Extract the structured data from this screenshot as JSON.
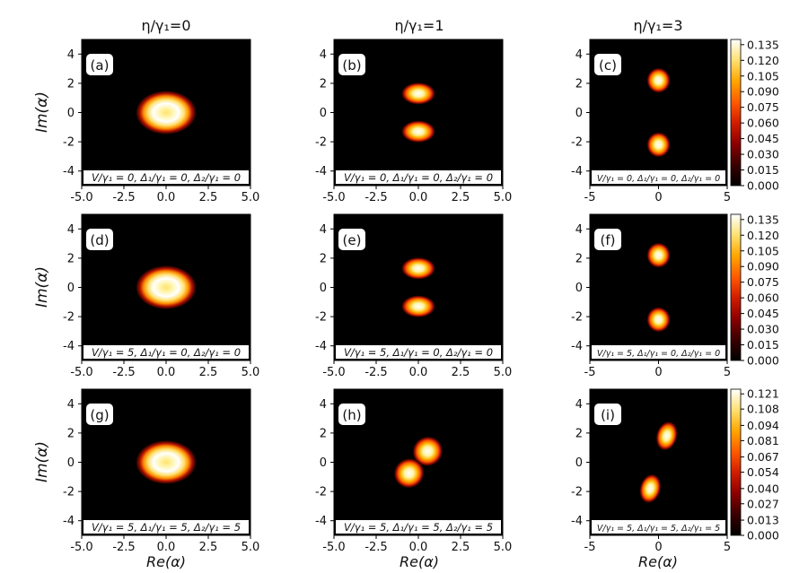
{
  "figure": {
    "column_titles": [
      "η/γ₁=0",
      "η/γ₁=1",
      "η/γ₁=3"
    ],
    "row_ylabels": [
      "Im(α)",
      "Im(α)",
      "Im(α)"
    ],
    "bottom_xlabels": [
      "Re(α)",
      "Re(α)",
      "Re(α)"
    ],
    "colormap": [
      "#000000",
      "#3a0000",
      "#8b0000",
      "#d01c00",
      "#ff5a00",
      "#ffa500",
      "#ffe070",
      "#ffffff"
    ]
  },
  "chart_data": [
    {
      "type": "heatmap",
      "panel_label": "(a)",
      "annotation": "V/γ₁ = 0, Δ₁/γ₁ = 0, Δ₂/γ₁ = 0",
      "xlim": [
        -5,
        5
      ],
      "ylim": [
        -5,
        5
      ],
      "xticks": [
        "-5.0",
        "-2.5",
        "0.0",
        "2.5",
        "5.0"
      ],
      "yticks": [
        "4",
        "2",
        "0",
        "-2",
        "-4"
      ],
      "vmax": 0.14,
      "blobs": [
        {
          "x": 0,
          "y": 0,
          "rx": 1.8,
          "ry": 1.5,
          "ring": true
        }
      ]
    },
    {
      "type": "heatmap",
      "panel_label": "(b)",
      "annotation": "V/γ₁ = 0, Δ₁/γ₁ = 0, Δ₂/γ₁ = 0",
      "xlim": [
        -5,
        5
      ],
      "ylim": [
        -5,
        5
      ],
      "xticks": [
        "-5.0",
        "-2.5",
        "0.0",
        "2.5",
        "5.0"
      ],
      "yticks": [
        "4",
        "2",
        "0",
        "-2",
        "-4"
      ],
      "vmax": 0.14,
      "blobs": [
        {
          "x": 0,
          "y": 1.3,
          "rx": 1.0,
          "ry": 0.75
        },
        {
          "x": 0,
          "y": -1.3,
          "rx": 1.0,
          "ry": 0.75
        }
      ]
    },
    {
      "type": "heatmap",
      "panel_label": "(c)",
      "annotation": "V/γ₁ = 0, Δ₁/γ₁ = 0, Δ₂/γ₁ = 0",
      "xlim": [
        -5,
        5
      ],
      "ylim": [
        -5,
        5
      ],
      "xticks": [
        "-5",
        "0",
        "5"
      ],
      "yticks": [
        "4",
        "2",
        "0",
        "-2",
        "-4"
      ],
      "vmax": 0.14,
      "blobs": [
        {
          "x": 0,
          "y": 2.2,
          "rx": 0.85,
          "ry": 0.85
        },
        {
          "x": 0,
          "y": -2.2,
          "rx": 0.85,
          "ry": 0.85
        }
      ],
      "colorbar": {
        "ticks": [
          "0.135",
          "0.120",
          "0.105",
          "0.090",
          "0.075",
          "0.060",
          "0.045",
          "0.030",
          "0.015",
          "0.000"
        ],
        "max": 0.14
      }
    },
    {
      "type": "heatmap",
      "panel_label": "(d)",
      "annotation": "V/γ₁ = 5, Δ₁/γ₁ = 0, Δ₂/γ₁ = 0",
      "xlim": [
        -5,
        5
      ],
      "ylim": [
        -5,
        5
      ],
      "xticks": [
        "-5.0",
        "-2.5",
        "0.0",
        "2.5",
        "5.0"
      ],
      "yticks": [
        "4",
        "2",
        "0",
        "-2",
        "-4"
      ],
      "vmax": 0.14,
      "blobs": [
        {
          "x": 0,
          "y": 0,
          "rx": 1.8,
          "ry": 1.5,
          "ring": true
        }
      ]
    },
    {
      "type": "heatmap",
      "panel_label": "(e)",
      "annotation": "V/γ₁ = 5, Δ₁/γ₁ = 0, Δ₂/γ₁ = 0",
      "xlim": [
        -5,
        5
      ],
      "ylim": [
        -5,
        5
      ],
      "xticks": [
        "-5.0",
        "-2.5",
        "0.0",
        "2.5",
        "5.0"
      ],
      "yticks": [
        "4",
        "2",
        "0",
        "-2",
        "-4"
      ],
      "vmax": 0.14,
      "blobs": [
        {
          "x": 0,
          "y": 1.3,
          "rx": 1.0,
          "ry": 0.75
        },
        {
          "x": 0,
          "y": -1.3,
          "rx": 1.0,
          "ry": 0.75
        }
      ]
    },
    {
      "type": "heatmap",
      "panel_label": "(f)",
      "annotation": "V/γ₁ = 5, Δ₁/γ₁ = 0, Δ₂/γ₁ = 0",
      "xlim": [
        -5,
        5
      ],
      "ylim": [
        -5,
        5
      ],
      "xticks": [
        "-5",
        "0",
        "5"
      ],
      "yticks": [
        "4",
        "2",
        "0",
        "-2",
        "-4"
      ],
      "vmax": 0.14,
      "blobs": [
        {
          "x": 0,
          "y": 2.2,
          "rx": 0.85,
          "ry": 0.85
        },
        {
          "x": 0,
          "y": -2.2,
          "rx": 0.85,
          "ry": 0.85
        }
      ],
      "colorbar": {
        "ticks": [
          "0.135",
          "0.120",
          "0.105",
          "0.090",
          "0.075",
          "0.060",
          "0.045",
          "0.030",
          "0.015",
          "0.000"
        ],
        "max": 0.14
      }
    },
    {
      "type": "heatmap",
      "panel_label": "(g)",
      "annotation": "V/γ₁ = 5, Δ₁/γ₁ = 5, Δ₂/γ₁ = 5",
      "xlim": [
        -5,
        5
      ],
      "ylim": [
        -5,
        5
      ],
      "xticks": [
        "-5.0",
        "-2.5",
        "0.0",
        "2.5",
        "5.0"
      ],
      "yticks": [
        "4",
        "2",
        "0",
        "-2",
        "-4"
      ],
      "vmax": 0.14,
      "blobs": [
        {
          "x": 0,
          "y": 0,
          "rx": 1.8,
          "ry": 1.5,
          "ring": true
        }
      ]
    },
    {
      "type": "heatmap",
      "panel_label": "(h)",
      "annotation": "V/γ₁ = 5, Δ₁/γ₁ = 5, Δ₂/γ₁ = 5",
      "xlim": [
        -5,
        5
      ],
      "ylim": [
        -5,
        5
      ],
      "xticks": [
        "-5.0",
        "-2.5",
        "0.0",
        "2.5",
        "5.0"
      ],
      "yticks": [
        "4",
        "2",
        "0",
        "-2",
        "-4"
      ],
      "vmax": 0.14,
      "blobs": [
        {
          "x": 0.55,
          "y": 0.75,
          "rx": 0.9,
          "ry": 1.0,
          "rot": -35
        },
        {
          "x": -0.55,
          "y": -0.75,
          "rx": 0.9,
          "ry": 1.0,
          "rot": -35
        }
      ]
    },
    {
      "type": "heatmap",
      "panel_label": "(i)",
      "annotation": "V/γ₁ = 5, Δ₁/γ₁ = 5, Δ₂/γ₁ = 5",
      "xlim": [
        -5,
        5
      ],
      "ylim": [
        -5,
        5
      ],
      "xticks": [
        "-5",
        "0",
        "5"
      ],
      "yticks": [
        "4",
        "2",
        "0",
        "-2",
        "-4"
      ],
      "vmax": 0.125,
      "blobs": [
        {
          "x": 0.6,
          "y": 1.8,
          "rx": 0.75,
          "ry": 1.0,
          "rot": 15
        },
        {
          "x": -0.6,
          "y": -1.8,
          "rx": 0.75,
          "ry": 1.0,
          "rot": 15
        }
      ],
      "colorbar": {
        "ticks": [
          "0.121",
          "0.108",
          "0.094",
          "0.081",
          "0.067",
          "0.054",
          "0.040",
          "0.027",
          "0.013",
          "0.000"
        ],
        "max": 0.125
      }
    }
  ]
}
